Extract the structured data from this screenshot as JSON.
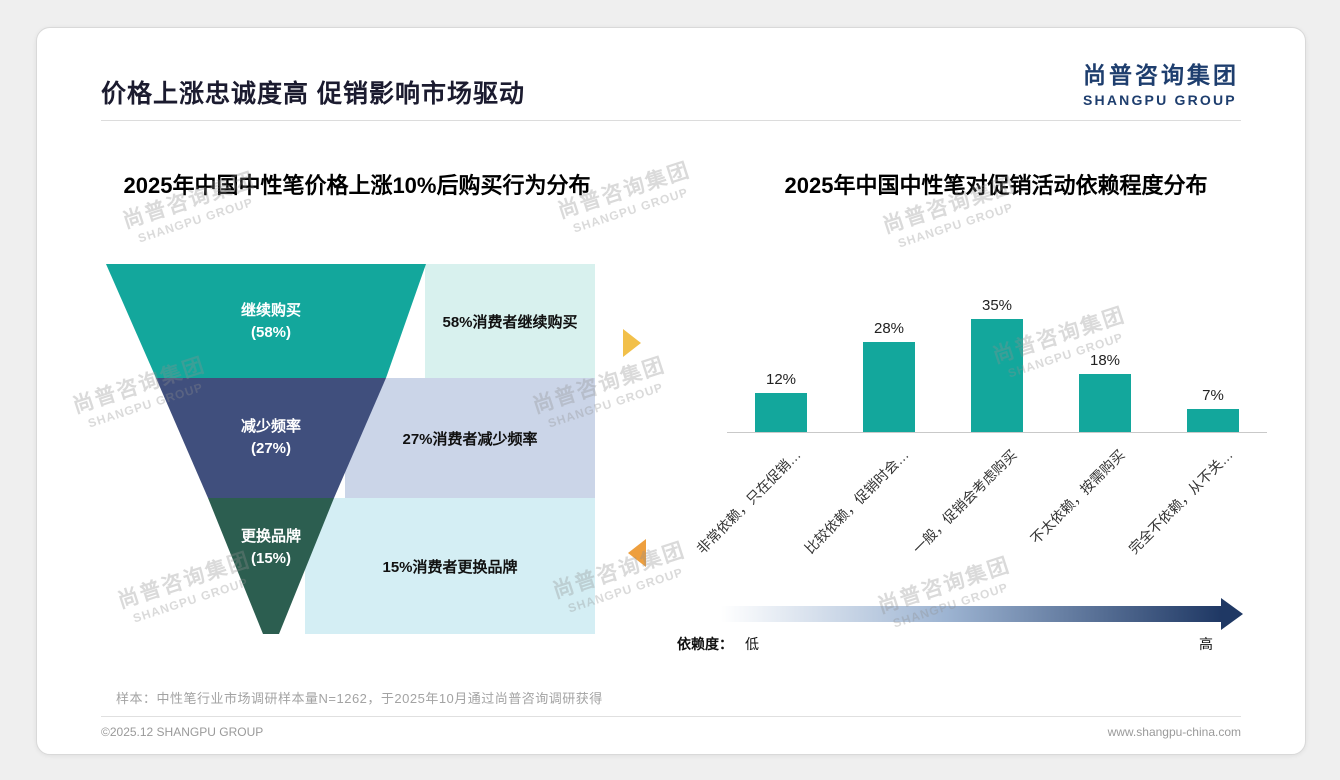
{
  "page": {
    "title": "价格上涨忠诚度高 促销影响市场驱动",
    "logo": {
      "cn": "尚普咨询集团",
      "en": "SHANGPU GROUP"
    },
    "watermark": {
      "cn": "尚普咨询集团",
      "en": "SHANGPU GROUP"
    },
    "sample_note": "样本：中性笔行业市场调研样本量N=1262，于2025年10月通过尚普咨询调研获得",
    "footer": {
      "left": "©2025.12 SHANGPU GROUP",
      "right": "www.shangpu-china.com"
    },
    "accent_colors": {
      "teal": "#13a79c",
      "navy": "#1e3e6e"
    }
  },
  "chart_data": [
    {
      "type": "funnel",
      "title": "2025年中国中性笔价格上涨10%后购买行为分布",
      "stages": [
        {
          "label": "继续购买",
          "pct_label": "(58%)",
          "value": 58,
          "desc": "58%消费者继续购买",
          "color": "#13a79c",
          "bg_color": "#d8f1ee"
        },
        {
          "label": "减少频率",
          "pct_label": "(27%)",
          "value": 27,
          "desc": "27%消费者减少频率",
          "color": "#404f7d",
          "bg_color": "#cbd5e8"
        },
        {
          "label": "更换品牌",
          "pct_label": "(15%)",
          "value": 15,
          "desc": "15%消费者更换品牌",
          "color": "#2c5e50",
          "bg_color": "#d4eef4"
        }
      ]
    },
    {
      "type": "bar",
      "title": "2025年中国中性笔对促销活动依赖程度分布",
      "categories": [
        "非常依赖，只在促销…",
        "比较依赖，促销时会…",
        "一般，促销会考虑购买",
        "不太依赖，按需购买",
        "完全不依赖，从不关…"
      ],
      "values": [
        12,
        28,
        35,
        18,
        7
      ],
      "unit": "%",
      "bar_color": "#13a79c",
      "ylim": [
        0,
        40
      ],
      "grid": false,
      "dependency_scale": {
        "label": "依赖度：",
        "low": "低",
        "high": "高"
      }
    }
  ]
}
